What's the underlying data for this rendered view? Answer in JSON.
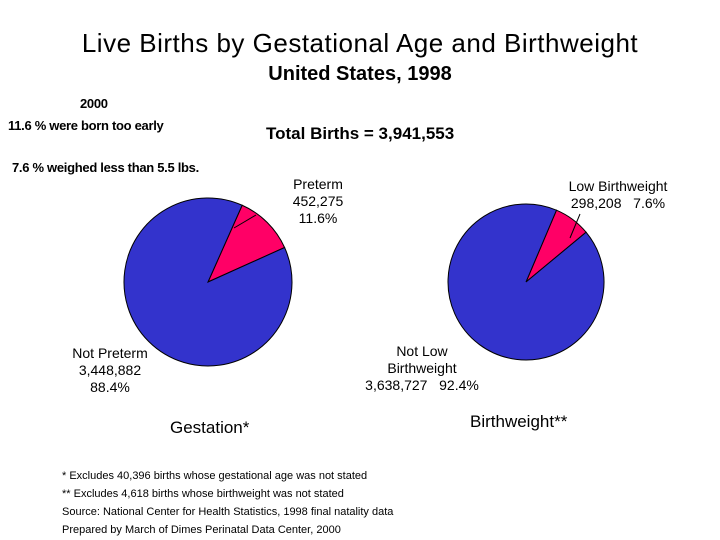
{
  "title": "Live Births by Gestational Age and Birthweight",
  "subtitle": "United States, 1998",
  "notes": {
    "year": "2000",
    "preterm_note": "11.6 % were born too early",
    "lbw_note": "7.6 % weighed less than 5.5 lbs."
  },
  "total_births": "Total Births = 3,941,553",
  "colors": {
    "primary": "#3333cc",
    "highlight": "#ff0066",
    "outline": "#000000"
  },
  "chart_data": [
    {
      "type": "pie",
      "title": "Gestation*",
      "slices": [
        {
          "label": "Preterm",
          "count": "452,275",
          "percent_text": "11.6%",
          "value": 11.6,
          "color": "#ff0066"
        },
        {
          "label": "Not Preterm",
          "count": "3,448,882",
          "percent_text": "88.4%",
          "value": 88.4,
          "color": "#3333cc"
        }
      ]
    },
    {
      "type": "pie",
      "title": "Birthweight**",
      "slices": [
        {
          "label": "Low Birthweight",
          "count": "298,208",
          "percent_text": "7.6%",
          "value": 7.6,
          "color": "#ff0066"
        },
        {
          "label_line1": "Not Low",
          "label_line2": "Birthweight",
          "count": "3,638,727",
          "percent_text": "92.4%",
          "value": 92.4,
          "color": "#3333cc"
        }
      ]
    }
  ],
  "footnotes": [
    "* Excludes 40,396 births whose gestational age was not stated",
    "** Excludes 4,618 births whose birthweight was not stated",
    "Source: National Center for Health Statistics, 1998 final natality data",
    "Prepared by March of Dimes Perinatal Data Center, 2000"
  ]
}
